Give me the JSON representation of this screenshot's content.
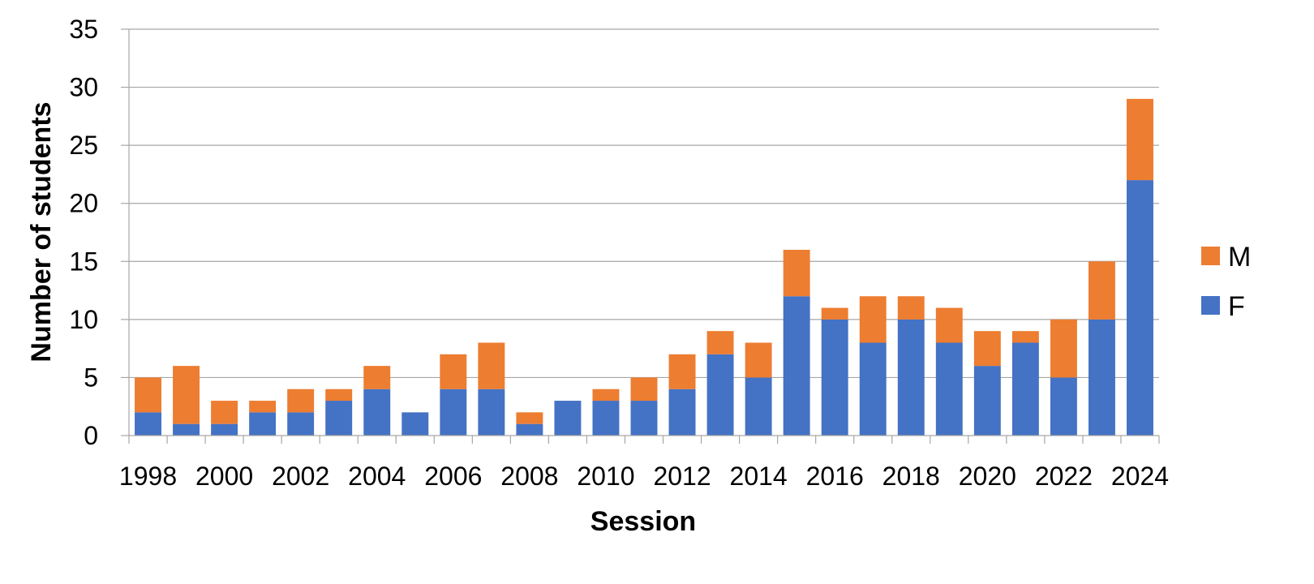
{
  "chart_data": {
    "type": "bar",
    "stacked": true,
    "categories": [
      "1998",
      "1999",
      "2000",
      "2001",
      "2002",
      "2003",
      "2004",
      "2005",
      "2006",
      "2007",
      "2008",
      "2009",
      "2010",
      "2011",
      "2012",
      "2013",
      "2014",
      "2015",
      "2016",
      "2017",
      "2018",
      "2019",
      "2020",
      "2021",
      "2022",
      "2023",
      "2024"
    ],
    "x_tick_labels": [
      "1998",
      "2000",
      "2002",
      "2004",
      "2006",
      "2008",
      "2010",
      "2012",
      "2014",
      "2016",
      "2018",
      "2020",
      "2022",
      "2024"
    ],
    "series": [
      {
        "name": "F",
        "color": "#4472C4",
        "values": [
          2,
          1,
          1,
          2,
          2,
          3,
          4,
          2,
          4,
          4,
          1,
          3,
          3,
          3,
          4,
          7,
          5,
          12,
          10,
          8,
          10,
          8,
          6,
          8,
          5,
          10,
          22
        ]
      },
      {
        "name": "M",
        "color": "#ED7D31",
        "values": [
          3,
          5,
          2,
          1,
          2,
          1,
          2,
          0,
          3,
          4,
          1,
          0,
          1,
          2,
          3,
          2,
          3,
          4,
          1,
          4,
          2,
          3,
          3,
          1,
          5,
          5,
          7
        ]
      }
    ],
    "xlabel": "Session",
    "ylabel": "Number of students",
    "ylim": [
      0,
      35
    ],
    "y_ticks": [
      0,
      5,
      10,
      15,
      20,
      25,
      30,
      35
    ],
    "grid": true,
    "legend_position": "right",
    "legend_order": [
      "M",
      "F"
    ]
  }
}
